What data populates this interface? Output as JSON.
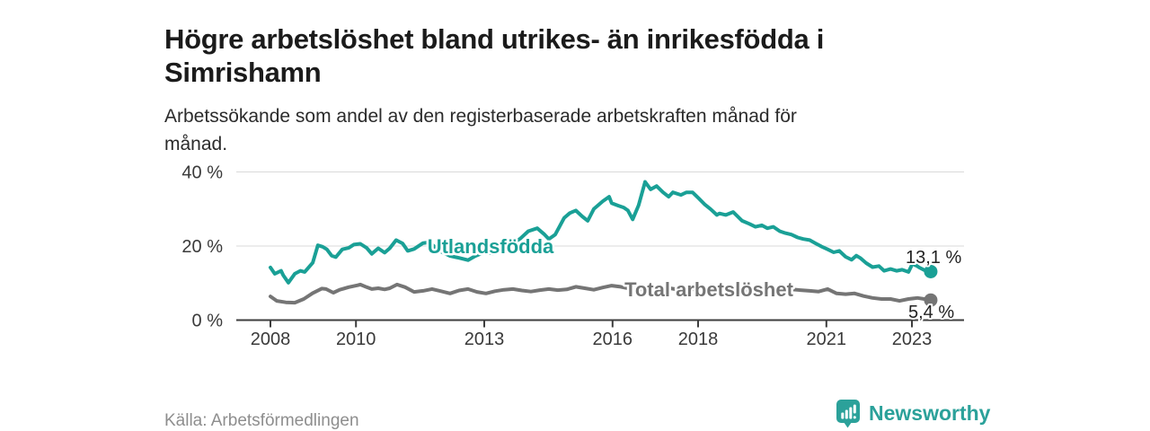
{
  "title": "Högre arbetslöshet bland utrikes- än inrikesfödda i Simrishamn",
  "subtitle": "Arbetssökande som andel av den registerbaserade arbetskraften månad för månad.",
  "source": "Källa: Arbetsförmedlingen",
  "branding": {
    "logo_text": "Newsworthy",
    "logo_icon": "bar-chart-speech-bubble-icon",
    "logo_color": "#2ba19a"
  },
  "colors": {
    "foreign_born_line": "#1aa096",
    "total_line": "#757575",
    "grid": "#d9d9d9",
    "axis": "#3d3d3d",
    "end_label_text": "#222222"
  },
  "chart_data": {
    "type": "line",
    "xlabel": "",
    "ylabel": "",
    "xlim": [
      2008,
      2023.6
    ],
    "ylim": [
      0,
      42
    ],
    "grid": "horizontal",
    "legend_position": "inline-labels",
    "y_ticks": [
      {
        "value": 40,
        "label": "40 %"
      },
      {
        "value": 20,
        "label": "20 %"
      },
      {
        "value": 0,
        "label": "0 %"
      }
    ],
    "x_ticks": [
      {
        "year": 2008,
        "label": "2008"
      },
      {
        "year": 2010,
        "label": "2010"
      },
      {
        "year": 2013,
        "label": "2013"
      },
      {
        "year": 2016,
        "label": "2016"
      },
      {
        "year": 2018,
        "label": "2018"
      },
      {
        "year": 2021,
        "label": "2021"
      },
      {
        "year": 2023,
        "label": "2023"
      }
    ],
    "series": [
      {
        "name": "Utlandsfödda",
        "color": "#1aa096",
        "end_label": "13,1 %",
        "end_value": 13.1,
        "points": [
          [
            2008.0,
            14.2
          ],
          [
            2008.1,
            12.5
          ],
          [
            2008.25,
            13.3
          ],
          [
            2008.3,
            12.1
          ],
          [
            2008.42,
            10.1
          ],
          [
            2008.57,
            12.5
          ],
          [
            2008.7,
            13.3
          ],
          [
            2008.8,
            13.0
          ],
          [
            2008.99,
            15.5
          ],
          [
            2009.11,
            20.2
          ],
          [
            2009.22,
            19.8
          ],
          [
            2009.32,
            19.1
          ],
          [
            2009.43,
            17.4
          ],
          [
            2009.53,
            17.0
          ],
          [
            2009.68,
            19.1
          ],
          [
            2009.83,
            19.5
          ],
          [
            2009.95,
            20.4
          ],
          [
            2010.1,
            20.6
          ],
          [
            2010.25,
            19.5
          ],
          [
            2010.37,
            17.9
          ],
          [
            2010.52,
            19.4
          ],
          [
            2010.67,
            18.2
          ],
          [
            2010.79,
            19.4
          ],
          [
            2010.94,
            21.6
          ],
          [
            2011.09,
            20.7
          ],
          [
            2011.21,
            18.7
          ],
          [
            2011.36,
            19.2
          ],
          [
            2011.57,
            20.8
          ],
          [
            2011.72,
            21.0
          ],
          [
            2011.87,
            19.5
          ],
          [
            2011.99,
            18.5
          ],
          [
            2012.2,
            17.3
          ],
          [
            2012.41,
            16.8
          ],
          [
            2012.62,
            16.2
          ],
          [
            2012.79,
            17.3
          ],
          [
            2013.0,
            18.3
          ],
          [
            2013.21,
            18.0
          ],
          [
            2013.42,
            19.2
          ],
          [
            2013.63,
            20.5
          ],
          [
            2013.84,
            22.0
          ],
          [
            2014.03,
            24.0
          ],
          [
            2014.24,
            24.8
          ],
          [
            2014.41,
            23.1
          ],
          [
            2014.51,
            21.9
          ],
          [
            2014.66,
            23.1
          ],
          [
            2014.87,
            27.6
          ],
          [
            2015.0,
            28.9
          ],
          [
            2015.14,
            29.6
          ],
          [
            2015.29,
            28.0
          ],
          [
            2015.42,
            26.8
          ],
          [
            2015.56,
            30.0
          ],
          [
            2015.77,
            32.1
          ],
          [
            2015.92,
            33.3
          ],
          [
            2015.98,
            31.6
          ],
          [
            2016.13,
            30.9
          ],
          [
            2016.26,
            30.4
          ],
          [
            2016.36,
            29.6
          ],
          [
            2016.47,
            27.2
          ],
          [
            2016.61,
            31.0
          ],
          [
            2016.76,
            37.3
          ],
          [
            2016.89,
            35.3
          ],
          [
            2017.03,
            36.2
          ],
          [
            2017.18,
            34.5
          ],
          [
            2017.31,
            33.3
          ],
          [
            2017.41,
            34.5
          ],
          [
            2017.6,
            33.8
          ],
          [
            2017.73,
            34.5
          ],
          [
            2017.87,
            34.5
          ],
          [
            2018.02,
            32.8
          ],
          [
            2018.15,
            31.3
          ],
          [
            2018.29,
            30.0
          ],
          [
            2018.44,
            28.4
          ],
          [
            2018.5,
            28.8
          ],
          [
            2018.65,
            28.4
          ],
          [
            2018.82,
            29.2
          ],
          [
            2019.03,
            26.8
          ],
          [
            2019.2,
            26.0
          ],
          [
            2019.34,
            25.2
          ],
          [
            2019.49,
            25.6
          ],
          [
            2019.62,
            24.8
          ],
          [
            2019.76,
            25.2
          ],
          [
            2019.91,
            24.0
          ],
          [
            2020.04,
            23.5
          ],
          [
            2020.18,
            23.1
          ],
          [
            2020.33,
            22.3
          ],
          [
            2020.46,
            21.9
          ],
          [
            2020.61,
            21.6
          ],
          [
            2020.75,
            20.7
          ],
          [
            2020.88,
            19.9
          ],
          [
            2021.03,
            19.1
          ],
          [
            2021.17,
            18.3
          ],
          [
            2021.3,
            18.7
          ],
          [
            2021.45,
            17.1
          ],
          [
            2021.59,
            16.3
          ],
          [
            2021.7,
            17.4
          ],
          [
            2021.8,
            16.7
          ],
          [
            2021.93,
            15.4
          ],
          [
            2022.08,
            14.3
          ],
          [
            2022.23,
            14.6
          ],
          [
            2022.35,
            13.3
          ],
          [
            2022.5,
            13.8
          ],
          [
            2022.64,
            13.3
          ],
          [
            2022.77,
            13.6
          ],
          [
            2022.92,
            13.0
          ],
          [
            2023.02,
            15.4
          ],
          [
            2023.17,
            14.2
          ],
          [
            2023.29,
            13.5
          ],
          [
            2023.44,
            13.1
          ]
        ]
      },
      {
        "name": "Total arbetslöshet",
        "color": "#757575",
        "end_label": "5,4 %",
        "end_value": 5.4,
        "points": [
          [
            2008.0,
            6.4
          ],
          [
            2008.15,
            5.2
          ],
          [
            2008.36,
            4.8
          ],
          [
            2008.57,
            4.7
          ],
          [
            2008.78,
            5.7
          ],
          [
            2008.99,
            7.3
          ],
          [
            2009.2,
            8.5
          ],
          [
            2009.3,
            8.4
          ],
          [
            2009.47,
            7.4
          ],
          [
            2009.62,
            8.2
          ],
          [
            2009.83,
            8.9
          ],
          [
            2010.04,
            9.4
          ],
          [
            2010.1,
            9.6
          ],
          [
            2010.25,
            8.9
          ],
          [
            2010.37,
            8.4
          ],
          [
            2010.52,
            8.6
          ],
          [
            2010.67,
            8.3
          ],
          [
            2010.79,
            8.6
          ],
          [
            2010.96,
            9.6
          ],
          [
            2011.15,
            8.9
          ],
          [
            2011.36,
            7.6
          ],
          [
            2011.57,
            7.9
          ],
          [
            2011.78,
            8.4
          ],
          [
            2011.99,
            7.8
          ],
          [
            2012.2,
            7.2
          ],
          [
            2012.41,
            8.0
          ],
          [
            2012.62,
            8.4
          ],
          [
            2012.83,
            7.6
          ],
          [
            2013.04,
            7.2
          ],
          [
            2013.25,
            7.8
          ],
          [
            2013.46,
            8.2
          ],
          [
            2013.67,
            8.4
          ],
          [
            2013.88,
            8.0
          ],
          [
            2014.09,
            7.7
          ],
          [
            2014.3,
            8.1
          ],
          [
            2014.51,
            8.4
          ],
          [
            2014.72,
            8.1
          ],
          [
            2014.93,
            8.3
          ],
          [
            2015.14,
            9.0
          ],
          [
            2015.35,
            8.6
          ],
          [
            2015.56,
            8.2
          ],
          [
            2015.77,
            8.8
          ],
          [
            2015.98,
            9.3
          ],
          [
            2016.19,
            9.0
          ],
          [
            2016.4,
            8.5
          ],
          [
            2016.61,
            8.2
          ],
          [
            2016.82,
            8.6
          ],
          [
            2017.03,
            9.0
          ],
          [
            2017.24,
            8.8
          ],
          [
            2017.45,
            8.4
          ],
          [
            2017.66,
            8.0
          ],
          [
            2017.87,
            8.3
          ],
          [
            2018.08,
            8.6
          ],
          [
            2018.29,
            8.4
          ],
          [
            2018.5,
            8.1
          ],
          [
            2018.71,
            7.8
          ],
          [
            2018.92,
            8.0
          ],
          [
            2019.13,
            8.2
          ],
          [
            2019.34,
            8.0
          ],
          [
            2019.55,
            7.8
          ],
          [
            2019.76,
            7.9
          ],
          [
            2019.97,
            8.1
          ],
          [
            2020.18,
            8.3
          ],
          [
            2020.39,
            8.1
          ],
          [
            2020.61,
            7.9
          ],
          [
            2020.82,
            7.7
          ],
          [
            2021.03,
            8.4
          ],
          [
            2021.24,
            7.2
          ],
          [
            2021.45,
            7.0
          ],
          [
            2021.66,
            7.2
          ],
          [
            2021.87,
            6.5
          ],
          [
            2022.08,
            6.0
          ],
          [
            2022.29,
            5.7
          ],
          [
            2022.5,
            5.7
          ],
          [
            2022.71,
            5.2
          ],
          [
            2022.92,
            5.7
          ],
          [
            2023.13,
            6.0
          ],
          [
            2023.29,
            5.7
          ],
          [
            2023.44,
            5.4
          ]
        ]
      }
    ]
  }
}
